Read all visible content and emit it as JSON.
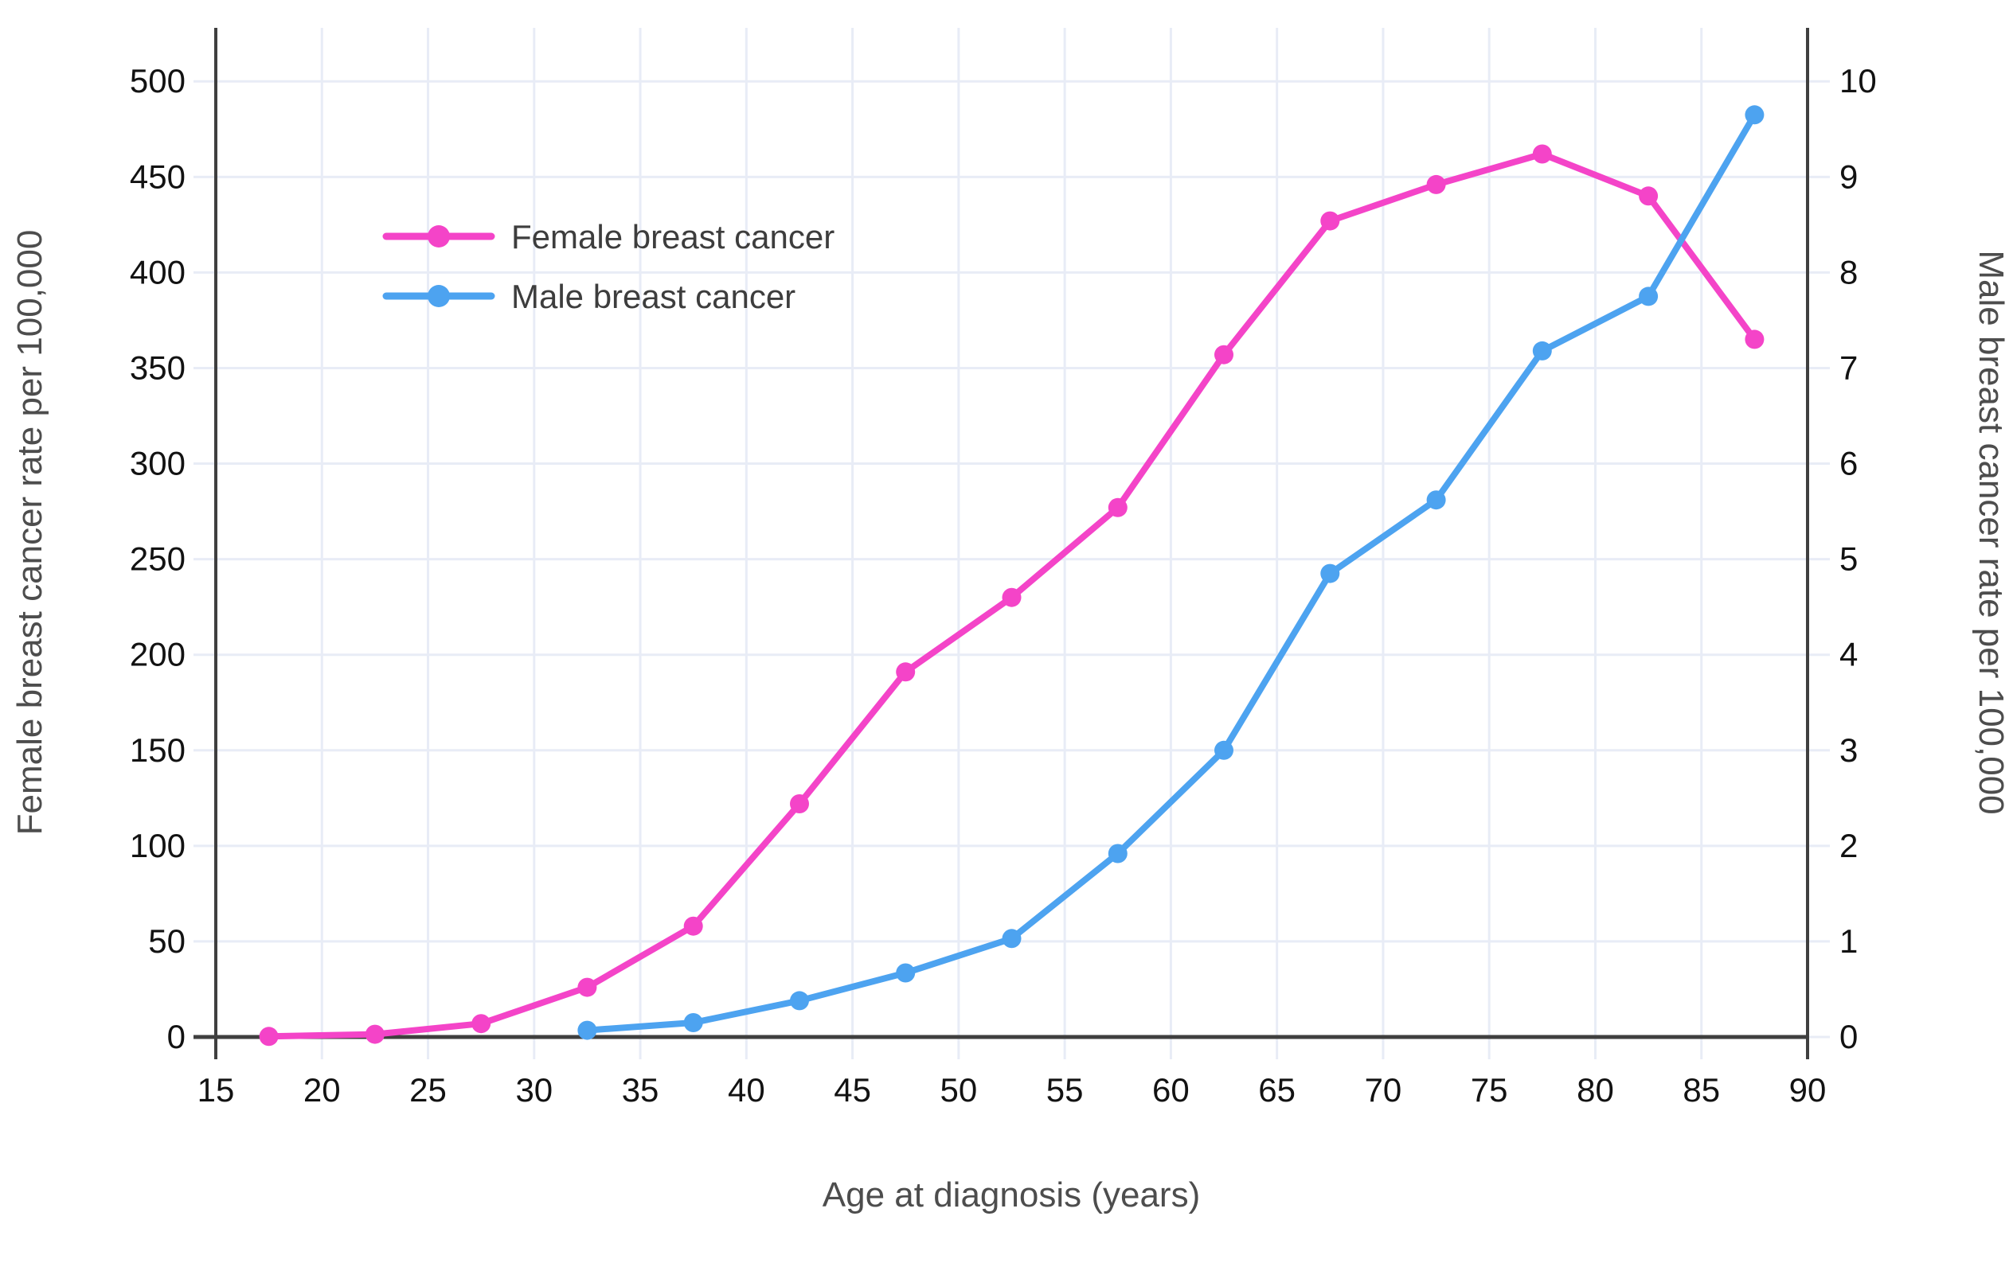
{
  "page": {
    "background": "#ffffff"
  },
  "chart_data": {
    "type": "line",
    "title": "",
    "xlabel": "Age at diagnosis (years)",
    "ylabel_left": "Female breast cancer rate per 100,000",
    "ylabel_right": "Male breast cancer rate per 100,000",
    "x_ticks": [
      15,
      20,
      25,
      30,
      35,
      40,
      45,
      50,
      55,
      60,
      65,
      70,
      75,
      80,
      85,
      90
    ],
    "y_left_ticks": [
      0,
      50,
      100,
      150,
      200,
      250,
      300,
      350,
      400,
      450,
      500
    ],
    "y_right_ticks": [
      0,
      1,
      2,
      3,
      4,
      5,
      6,
      7,
      8,
      9,
      10
    ],
    "xlim": [
      15,
      90
    ],
    "ylim_left": [
      0,
      528
    ],
    "ylim_right": [
      0,
      10.56
    ],
    "grid": true,
    "legend_position": "inside-top-left",
    "series": [
      {
        "name": "Female breast cancer",
        "axis": "left",
        "color": "#f444c8",
        "x": [
          17.5,
          22.5,
          27.5,
          32.5,
          37.5,
          42.5,
          47.5,
          52.5,
          57.5,
          62.5,
          67.5,
          72.5,
          77.5,
          82.5,
          87.5
        ],
        "y": [
          0.3,
          1.4,
          7,
          26,
          58,
          122,
          191,
          230,
          277,
          357,
          427,
          446,
          462,
          440,
          365
        ]
      },
      {
        "name": "Male breast cancer",
        "axis": "right",
        "color": "#4da3f0",
        "x": [
          32.5,
          37.5,
          42.5,
          47.5,
          52.5,
          57.5,
          62.5,
          67.5,
          72.5,
          77.5,
          82.5,
          87.5
        ],
        "y": [
          0.07,
          0.15,
          0.38,
          0.67,
          1.03,
          1.92,
          3.0,
          4.85,
          5.62,
          7.18,
          7.75,
          9.65
        ]
      }
    ],
    "colors": {
      "grid": "#e8ecf6",
      "axis_line": "#3f3f3f",
      "tick_label": "#121212",
      "axis_title": "#4d4d4d",
      "legend_text": "#3d3d3d",
      "background": "#ffffff"
    }
  }
}
